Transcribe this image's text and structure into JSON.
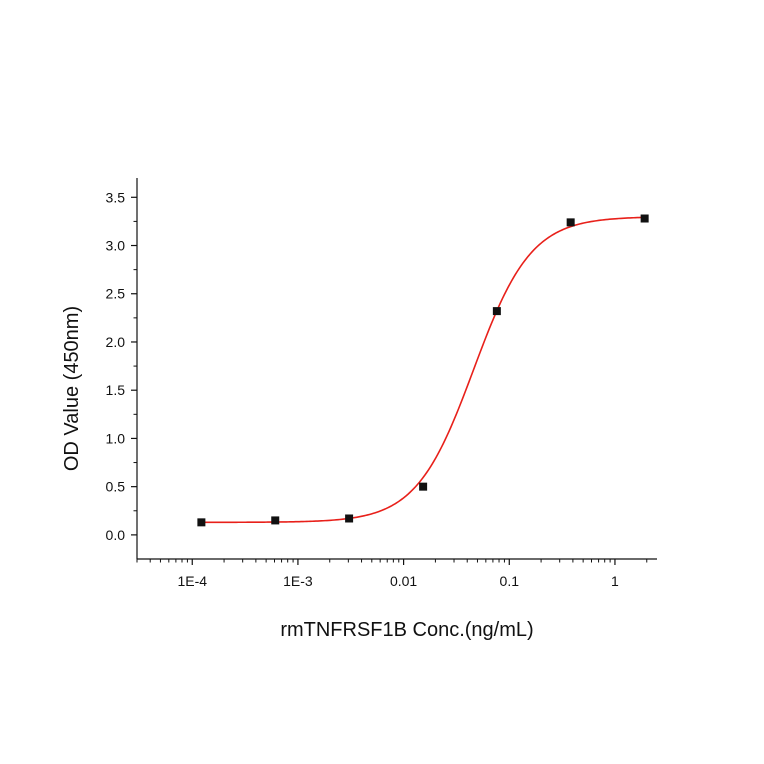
{
  "chart_data": {
    "type": "scatter",
    "title": "",
    "xlabel": "rmTNFRSF1B Conc.(ng/mL)",
    "ylabel": "OD Value (450nm)",
    "x_scale": "log",
    "xlim": [
      3e-05,
      2.5
    ],
    "ylim": [
      -0.25,
      3.7
    ],
    "x_ticks": [
      0.0001,
      0.001,
      0.01,
      0.1,
      1
    ],
    "x_tick_labels": [
      "1E-4",
      "1E-3",
      "0.01",
      "0.1",
      "1"
    ],
    "y_ticks": [
      0.0,
      0.5,
      1.0,
      1.5,
      2.0,
      2.5,
      3.0,
      3.5
    ],
    "y_tick_labels": [
      "0.0",
      "0.5",
      "1.0",
      "1.5",
      "2.0",
      "2.5",
      "3.0",
      "3.5"
    ],
    "grid": false,
    "legend": "none",
    "series": [
      {
        "x": [
          0.000122,
          0.00061,
          0.00305,
          0.0153,
          0.0763,
          0.381,
          1.91
        ],
        "y": [
          0.13,
          0.15,
          0.17,
          0.5,
          2.32,
          3.24,
          3.28
        ],
        "marker": "square",
        "color": "#111111"
      }
    ],
    "fit": {
      "type": "4PL",
      "bottom": 0.13,
      "top": 3.3,
      "ec50": 0.046,
      "hill": 1.6,
      "color": "#e8201a"
    }
  }
}
